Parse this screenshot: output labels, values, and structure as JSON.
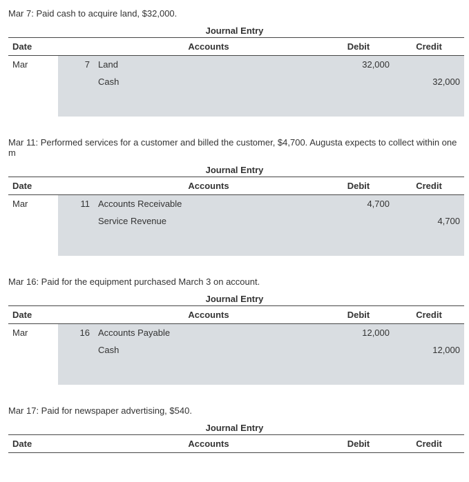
{
  "labels": {
    "journal_entry": "Journal Entry",
    "date": "Date",
    "accounts": "Accounts",
    "debit": "Debit",
    "credit": "Credit"
  },
  "entries": [
    {
      "description": "Mar 7: Paid cash to acquire land, $32,000.",
      "month": "Mar",
      "day": "7",
      "lines": [
        {
          "account": "Land",
          "debit": "32,000",
          "credit": "",
          "indent": false
        },
        {
          "account": "Cash",
          "debit": "",
          "credit": "32,000",
          "indent": true
        }
      ]
    },
    {
      "description": "Mar 11: Performed services for a customer and billed the customer, $4,700. Augusta expects to collect within one m",
      "month": "Mar",
      "day": "11",
      "lines": [
        {
          "account": "Accounts Receivable",
          "debit": "4,700",
          "credit": "",
          "indent": false
        },
        {
          "account": "Service Revenue",
          "debit": "",
          "credit": "4,700",
          "indent": true
        }
      ]
    },
    {
      "description": "Mar 16: Paid for the equipment purchased March 3 on account.",
      "month": "Mar",
      "day": "16",
      "lines": [
        {
          "account": "Accounts Payable",
          "debit": "12,000",
          "credit": "",
          "indent": false
        },
        {
          "account": "Cash",
          "debit": "",
          "credit": "12,000",
          "indent": true
        }
      ]
    },
    {
      "description": "Mar 17: Paid for newspaper advertising, $540.",
      "month": "",
      "day": "",
      "lines": [],
      "partial": true
    }
  ]
}
